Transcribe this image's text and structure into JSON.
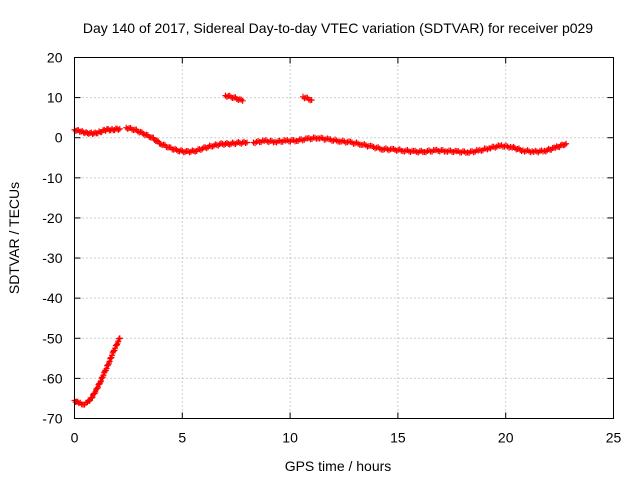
{
  "chart_data": {
    "type": "scatter",
    "title": "Day 140 of 2017, Sidereal Day-to-day VTEC variation (SDTVAR) for receiver p029",
    "xlabel": "GPS time / hours",
    "ylabel": "SDTVAR / TECUs",
    "xlim": [
      0,
      25
    ],
    "ylim": [
      -70,
      20
    ],
    "xticks": [
      0,
      5,
      10,
      15,
      20,
      25
    ],
    "yticks": [
      -70,
      -60,
      -50,
      -40,
      -30,
      -20,
      -10,
      0,
      10,
      20
    ],
    "grid": true,
    "marker": "plus",
    "color": "#ff0000",
    "series": [
      {
        "name": "SDTVAR",
        "segments": [
          [
            [
              0.0,
              -65.5
            ],
            [
              0.2,
              -66.2
            ],
            [
              0.4,
              -66.5
            ],
            [
              0.6,
              -66.0
            ],
            [
              0.8,
              -64.8
            ],
            [
              1.0,
              -63.0
            ],
            [
              1.2,
              -60.8
            ],
            [
              1.4,
              -58.5
            ],
            [
              1.6,
              -56.0
            ],
            [
              1.8,
              -53.5
            ],
            [
              2.0,
              -51.0
            ],
            [
              2.1,
              -50.0
            ]
          ],
          [
            [
              0.0,
              2.0
            ],
            [
              0.3,
              1.5
            ],
            [
              0.6,
              1.2
            ],
            [
              0.9,
              1.0
            ],
            [
              1.2,
              1.5
            ],
            [
              1.5,
              2.0
            ],
            [
              1.8,
              2.0
            ],
            [
              2.1,
              2.2
            ]
          ],
          [
            [
              2.4,
              2.5
            ],
            [
              2.8,
              2.0
            ],
            [
              3.2,
              1.0
            ],
            [
              3.6,
              0.0
            ],
            [
              4.0,
              -1.5
            ],
            [
              4.4,
              -2.5
            ],
            [
              4.8,
              -3.2
            ],
            [
              5.2,
              -3.5
            ],
            [
              5.6,
              -3.3
            ],
            [
              6.0,
              -2.6
            ],
            [
              6.4,
              -2.0
            ],
            [
              6.8,
              -1.6
            ],
            [
              7.2,
              -1.5
            ],
            [
              7.6,
              -1.3
            ],
            [
              8.0,
              -1.2
            ]
          ],
          [
            [
              7.0,
              10.5
            ],
            [
              7.4,
              10.0
            ],
            [
              7.8,
              9.2
            ]
          ],
          [
            [
              8.3,
              -1.2
            ],
            [
              8.8,
              -0.8
            ],
            [
              9.3,
              -1.0
            ],
            [
              9.8,
              -0.8
            ],
            [
              10.3,
              -0.7
            ],
            [
              10.8,
              -0.3
            ],
            [
              11.3,
              0.0
            ],
            [
              11.8,
              -0.5
            ],
            [
              12.3,
              -0.8
            ],
            [
              12.8,
              -1.2
            ],
            [
              13.3,
              -1.6
            ],
            [
              13.8,
              -2.3
            ],
            [
              14.3,
              -2.8
            ],
            [
              14.8,
              -3.0
            ],
            [
              15.3,
              -3.2
            ],
            [
              15.8,
              -3.5
            ],
            [
              16.3,
              -3.4
            ],
            [
              16.8,
              -3.2
            ],
            [
              17.3,
              -3.3
            ],
            [
              17.8,
              -3.5
            ],
            [
              18.3,
              -3.6
            ],
            [
              18.8,
              -3.2
            ],
            [
              19.3,
              -2.5
            ],
            [
              19.8,
              -2.0
            ],
            [
              20.3,
              -2.4
            ],
            [
              20.8,
              -3.2
            ],
            [
              21.3,
              -3.5
            ],
            [
              21.8,
              -3.3
            ],
            [
              22.3,
              -2.5
            ],
            [
              22.8,
              -1.5
            ]
          ],
          [
            [
              10.6,
              10.2
            ],
            [
              11.0,
              9.4
            ]
          ]
        ]
      }
    ]
  }
}
